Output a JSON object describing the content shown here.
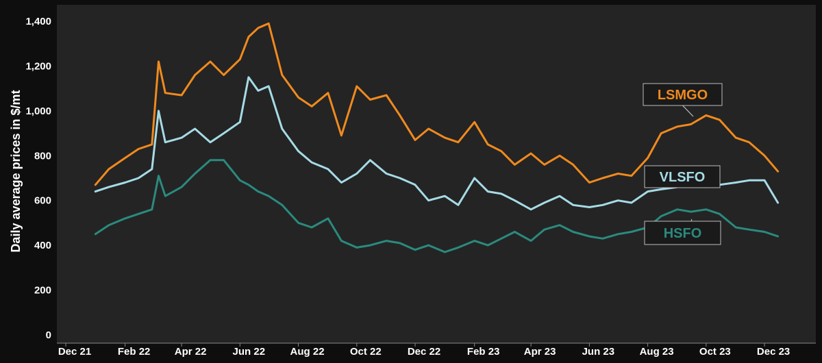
{
  "chart_data": {
    "type": "line",
    "title": "",
    "xlabel": "",
    "ylabel": "Daily average prices in $/mt",
    "ylim": [
      0,
      1430
    ],
    "yticks": [
      0,
      200,
      400,
      600,
      800,
      1000,
      1200,
      1400
    ],
    "ytick_labels": [
      "0",
      "200",
      "400",
      "600",
      "800",
      "1,000",
      "1,200",
      "1,400"
    ],
    "x_range": [
      "2021-12-01",
      "2023-12-31"
    ],
    "xticks": [
      "2021-12-01",
      "2022-02-01",
      "2022-04-01",
      "2022-06-01",
      "2022-08-01",
      "2022-10-01",
      "2022-12-01",
      "2023-02-01",
      "2023-04-01",
      "2023-06-01",
      "2023-08-01",
      "2023-10-01",
      "2023-12-01"
    ],
    "xtick_labels": [
      "Dec 21",
      "Feb 22",
      "Apr 22",
      "Jun 22",
      "Aug 22",
      "Oct 22",
      "Dec 22",
      "Feb 23",
      "Apr 23",
      "Jun 23",
      "Aug 23",
      "Oct 23",
      "Dec 23"
    ],
    "grid": false,
    "legend": "inline labels",
    "background": "#242424",
    "series": [
      {
        "name": "LSMGO",
        "color": "#f08a1e",
        "label_bg": "#1a1a1a",
        "x": [
          "2022-01-01",
          "2022-01-15",
          "2022-02-01",
          "2022-02-15",
          "2022-03-01",
          "2022-03-08",
          "2022-03-15",
          "2022-04-01",
          "2022-04-15",
          "2022-05-01",
          "2022-05-15",
          "2022-06-01",
          "2022-06-10",
          "2022-06-20",
          "2022-07-01",
          "2022-07-15",
          "2022-08-01",
          "2022-08-15",
          "2022-09-01",
          "2022-09-15",
          "2022-10-01",
          "2022-10-15",
          "2022-11-01",
          "2022-11-15",
          "2022-12-01",
          "2022-12-15",
          "2023-01-01",
          "2023-01-15",
          "2023-02-01",
          "2023-02-15",
          "2023-03-01",
          "2023-03-15",
          "2023-04-01",
          "2023-04-15",
          "2023-05-01",
          "2023-05-15",
          "2023-06-01",
          "2023-06-15",
          "2023-07-01",
          "2023-07-15",
          "2023-08-01",
          "2023-08-15",
          "2023-09-01",
          "2023-09-15",
          "2023-10-01",
          "2023-10-15",
          "2023-11-01",
          "2023-11-15",
          "2023-12-01",
          "2023-12-15"
        ],
        "values": [
          670,
          740,
          790,
          830,
          850,
          1220,
          1080,
          1070,
          1160,
          1220,
          1160,
          1230,
          1330,
          1370,
          1390,
          1160,
          1060,
          1020,
          1080,
          890,
          1110,
          1050,
          1070,
          980,
          870,
          920,
          880,
          860,
          950,
          850,
          820,
          760,
          810,
          760,
          800,
          760,
          680,
          700,
          720,
          710,
          790,
          900,
          930,
          940,
          980,
          960,
          880,
          860,
          800,
          730
        ]
      },
      {
        "name": "VLSFO",
        "color": "#a6dbe6",
        "label_bg": "#1a1a1a",
        "x": [
          "2022-01-01",
          "2022-01-15",
          "2022-02-01",
          "2022-02-15",
          "2022-03-01",
          "2022-03-08",
          "2022-03-15",
          "2022-04-01",
          "2022-04-15",
          "2022-05-01",
          "2022-05-15",
          "2022-06-01",
          "2022-06-10",
          "2022-06-20",
          "2022-07-01",
          "2022-07-15",
          "2022-08-01",
          "2022-08-15",
          "2022-09-01",
          "2022-09-15",
          "2022-10-01",
          "2022-10-15",
          "2022-11-01",
          "2022-11-15",
          "2022-12-01",
          "2022-12-15",
          "2023-01-01",
          "2023-01-15",
          "2023-02-01",
          "2023-02-15",
          "2023-03-01",
          "2023-03-15",
          "2023-04-01",
          "2023-04-15",
          "2023-05-01",
          "2023-05-15",
          "2023-06-01",
          "2023-06-15",
          "2023-07-01",
          "2023-07-15",
          "2023-08-01",
          "2023-08-15",
          "2023-09-01",
          "2023-09-15",
          "2023-10-01",
          "2023-10-15",
          "2023-11-01",
          "2023-11-15",
          "2023-12-01",
          "2023-12-15"
        ],
        "values": [
          640,
          660,
          680,
          700,
          740,
          1000,
          860,
          880,
          920,
          860,
          900,
          950,
          1150,
          1090,
          1110,
          920,
          820,
          770,
          740,
          680,
          720,
          780,
          720,
          700,
          670,
          600,
          620,
          580,
          700,
          640,
          630,
          600,
          560,
          590,
          620,
          580,
          570,
          580,
          600,
          590,
          640,
          650,
          660,
          680,
          660,
          670,
          680,
          690,
          690,
          590
        ]
      },
      {
        "name": "HSFO",
        "color": "#2b8a7e",
        "label_bg": "#1a1a1a",
        "x": [
          "2022-01-01",
          "2022-01-15",
          "2022-02-01",
          "2022-02-15",
          "2022-03-01",
          "2022-03-08",
          "2022-03-15",
          "2022-04-01",
          "2022-04-15",
          "2022-05-01",
          "2022-05-15",
          "2022-06-01",
          "2022-06-10",
          "2022-06-20",
          "2022-07-01",
          "2022-07-15",
          "2022-08-01",
          "2022-08-15",
          "2022-09-01",
          "2022-09-15",
          "2022-10-01",
          "2022-10-15",
          "2022-11-01",
          "2022-11-15",
          "2022-12-01",
          "2022-12-15",
          "2023-01-01",
          "2023-01-15",
          "2023-02-01",
          "2023-02-15",
          "2023-03-01",
          "2023-03-15",
          "2023-04-01",
          "2023-04-15",
          "2023-05-01",
          "2023-05-15",
          "2023-06-01",
          "2023-06-15",
          "2023-07-01",
          "2023-07-15",
          "2023-08-01",
          "2023-08-15",
          "2023-09-01",
          "2023-09-15",
          "2023-10-01",
          "2023-10-15",
          "2023-11-01",
          "2023-11-15",
          "2023-12-01",
          "2023-12-15"
        ],
        "values": [
          450,
          490,
          520,
          540,
          560,
          710,
          620,
          660,
          720,
          780,
          780,
          690,
          670,
          640,
          620,
          580,
          500,
          480,
          520,
          420,
          390,
          400,
          420,
          410,
          380,
          400,
          370,
          390,
          420,
          400,
          430,
          460,
          420,
          470,
          490,
          460,
          440,
          430,
          450,
          460,
          480,
          530,
          560,
          550,
          560,
          540,
          480,
          470,
          460,
          440
        ]
      }
    ]
  }
}
